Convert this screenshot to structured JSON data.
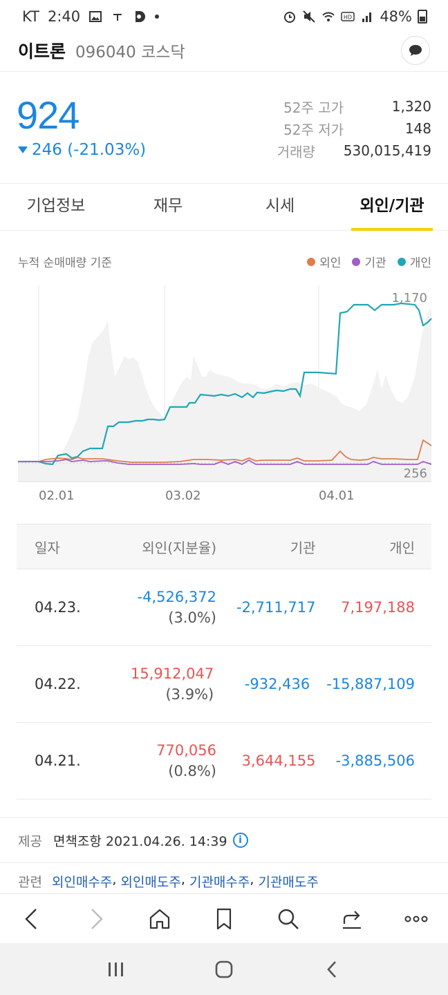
{
  "status": {
    "carrier": "KT",
    "time": "2:40",
    "battery": "48%"
  },
  "header": {
    "name": "이트론",
    "code": "096040 코스닥"
  },
  "price": {
    "current": "924",
    "change": "246 (-21.03%)",
    "stats": [
      {
        "label": "52주 고가",
        "value": "1,320"
      },
      {
        "label": "52주 저가",
        "value": "148"
      },
      {
        "label": "거래량",
        "value": "530,015,419"
      }
    ]
  },
  "tabs": [
    "기업정보",
    "재무",
    "시세",
    "외인/기관"
  ],
  "chart": {
    "caption": "누적 순매매량 기준",
    "legend": [
      {
        "label": "외인",
        "color": "#e07b4f"
      },
      {
        "label": "기관",
        "color": "#a05ec7"
      },
      {
        "label": "개인",
        "color": "#21a6b5"
      }
    ],
    "max_label": "1,170",
    "min_label": "256",
    "x_ticks": [
      "02.01",
      "03.02",
      "04.01"
    ]
  },
  "table": {
    "headers": [
      "일자",
      "외인(지분율)",
      "기관",
      "개인"
    ],
    "rows": [
      {
        "date": "04.23.",
        "foreign": "-4,526,372",
        "share": "(3.0%)",
        "inst": "-2,711,717",
        "indiv": "7,197,188"
      },
      {
        "date": "04.22.",
        "foreign": "15,912,047",
        "share": "(3.9%)",
        "inst": "-932,436",
        "indiv": "-15,887,109"
      },
      {
        "date": "04.21.",
        "foreign": "770,056",
        "share": "(0.8%)",
        "inst": "3,644,155",
        "indiv": "-3,885,506"
      }
    ]
  },
  "footer": {
    "provider_label": "제공",
    "provider_text": "면책조항 2021.04.26. 14:39",
    "related_label": "관련",
    "related_links": [
      "외인매수주",
      "외인매도주",
      "기관매수주",
      "기관매도주"
    ]
  },
  "icons": {
    "toolbar": [
      "back-icon",
      "forward-icon",
      "home-icon",
      "bookmark-icon",
      "search-icon",
      "share-icon",
      "more-icon"
    ],
    "nav": [
      "recent-apps-icon",
      "home-nav-icon",
      "back-nav-icon"
    ]
  }
}
